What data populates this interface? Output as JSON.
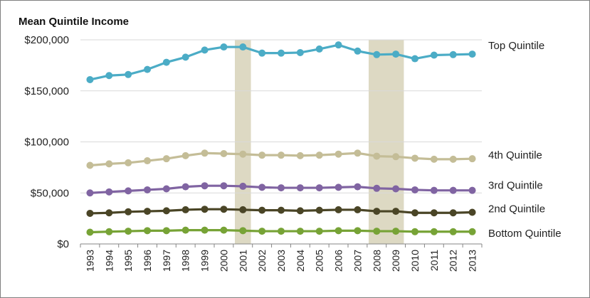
{
  "chart_data": {
    "type": "line",
    "title": "Mean Quintile Income",
    "xlabel": "",
    "ylabel": "",
    "ylim": [
      0,
      200000
    ],
    "yticks": [
      0,
      50000,
      100000,
      150000,
      200000
    ],
    "ytick_labels": [
      "$0",
      "$50,000",
      "$100,000",
      "$150,000",
      "$200,000"
    ],
    "grid": true,
    "legend": "labels at right end of each line",
    "x": [
      "1993",
      "1994",
      "1995",
      "1996",
      "1997",
      "1998",
      "1999",
      "2000",
      "2001",
      "2002",
      "2003",
      "2004",
      "2005",
      "2006",
      "2007",
      "2008",
      "2009",
      "2010",
      "2011",
      "2012",
      "2013"
    ],
    "recession_shading": [
      {
        "start": "2001",
        "end": "2001"
      },
      {
        "start": "2008",
        "end": "2009"
      }
    ],
    "series": [
      {
        "name": "Top Quintile",
        "color": "#4bacc6",
        "values": [
          161000,
          165000,
          166000,
          171000,
          178000,
          183000,
          190000,
          193000,
          193000,
          187000,
          187000,
          187500,
          191000,
          195000,
          189000,
          185500,
          186000,
          181500,
          185000,
          185500,
          186000
        ]
      },
      {
        "name": "4th Quintile",
        "color": "#c4bd97",
        "values": [
          77000,
          78500,
          79500,
          81500,
          83500,
          86500,
          89000,
          88500,
          88000,
          87000,
          87000,
          86500,
          87000,
          88000,
          89000,
          86000,
          85500,
          84000,
          83000,
          83000,
          83500
        ]
      },
      {
        "name": "3rd Quintile",
        "color": "#8064a2",
        "values": [
          50000,
          51000,
          52000,
          53000,
          54000,
          56000,
          57000,
          57000,
          56500,
          55500,
          55000,
          55000,
          55000,
          55500,
          56000,
          54500,
          54000,
          53000,
          52500,
          52500,
          52500
        ]
      },
      {
        "name": "2nd Quintile",
        "color": "#4a4526",
        "values": [
          30000,
          30500,
          31500,
          32000,
          32500,
          33500,
          34000,
          34000,
          33500,
          33000,
          33000,
          32500,
          33000,
          33500,
          33500,
          32000,
          32000,
          30500,
          30500,
          30500,
          31000
        ]
      },
      {
        "name": "Bottom Quintile",
        "color": "#77a336",
        "values": [
          11500,
          12000,
          12500,
          13000,
          13000,
          13500,
          13500,
          13500,
          13000,
          12500,
          12500,
          12500,
          12500,
          13000,
          13000,
          12500,
          12500,
          12000,
          12000,
          12000,
          12000
        ]
      }
    ]
  },
  "colors": {
    "grid": "#d9d9d9",
    "axis": "#868686",
    "shade": "#ddd9c3"
  }
}
